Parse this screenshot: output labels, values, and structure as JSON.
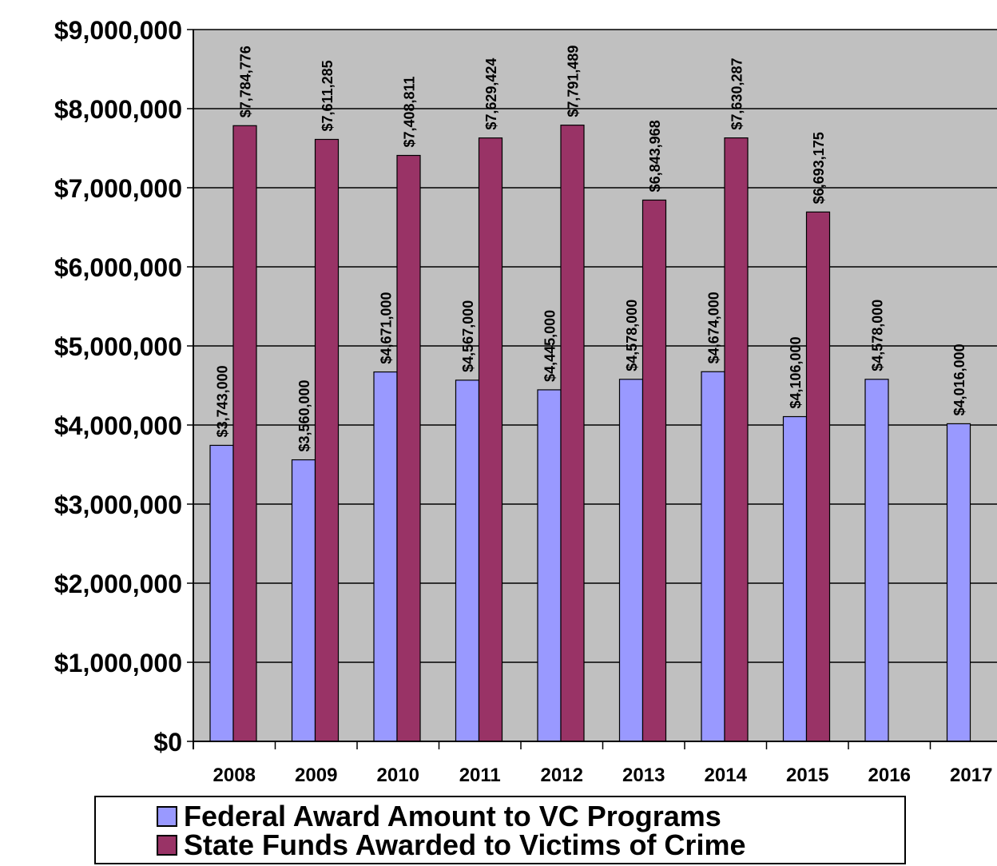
{
  "chart_data": {
    "type": "bar",
    "title": "",
    "xlabel": "",
    "ylabel": "",
    "categories": [
      "2008",
      "2009",
      "2010",
      "2011",
      "2012",
      "2013",
      "2014",
      "2015",
      "2016",
      "2017"
    ],
    "series": [
      {
        "name": "Federal Award Amount to VC Programs",
        "color": "#9999ff",
        "values": [
          3743000,
          3560000,
          4671000,
          4567000,
          4445000,
          4578000,
          4674000,
          4106000,
          4578000,
          4016000
        ],
        "labels": [
          "$3,743,000",
          "$3,560,000",
          "$4,671,000",
          "$4,567,000",
          "$4,445,000",
          "$4,578,000",
          "$4,674,000",
          "$4,106,000",
          "$4,578,000",
          "$4,016,000"
        ]
      },
      {
        "name": "State Funds Awarded to Victims of Crime",
        "color": "#993366",
        "values": [
          7784776,
          7611285,
          7408811,
          7629424,
          7791489,
          6843968,
          7630287,
          6693175,
          null,
          null
        ],
        "labels": [
          "$7,784,776",
          "$7,611,285",
          "$7,408,811",
          "$7,629,424",
          "$7,791,489",
          "$6,843,968",
          "$7,630,287",
          "$6,693,175",
          "",
          ""
        ]
      }
    ],
    "ylim": [
      0,
      9000000
    ],
    "yticks": [
      0,
      1000000,
      2000000,
      3000000,
      4000000,
      5000000,
      6000000,
      7000000,
      8000000,
      9000000
    ],
    "ytick_labels": [
      "$0",
      "$1,000,000",
      "$2,000,000",
      "$3,000,000",
      "$4,000,000",
      "$5,000,000",
      "$6,000,000",
      "$7,000,000",
      "$8,000,000",
      "$9,000,000"
    ],
    "grid": true,
    "plot_background": "#c0c0c0",
    "legend_position": "bottom"
  }
}
